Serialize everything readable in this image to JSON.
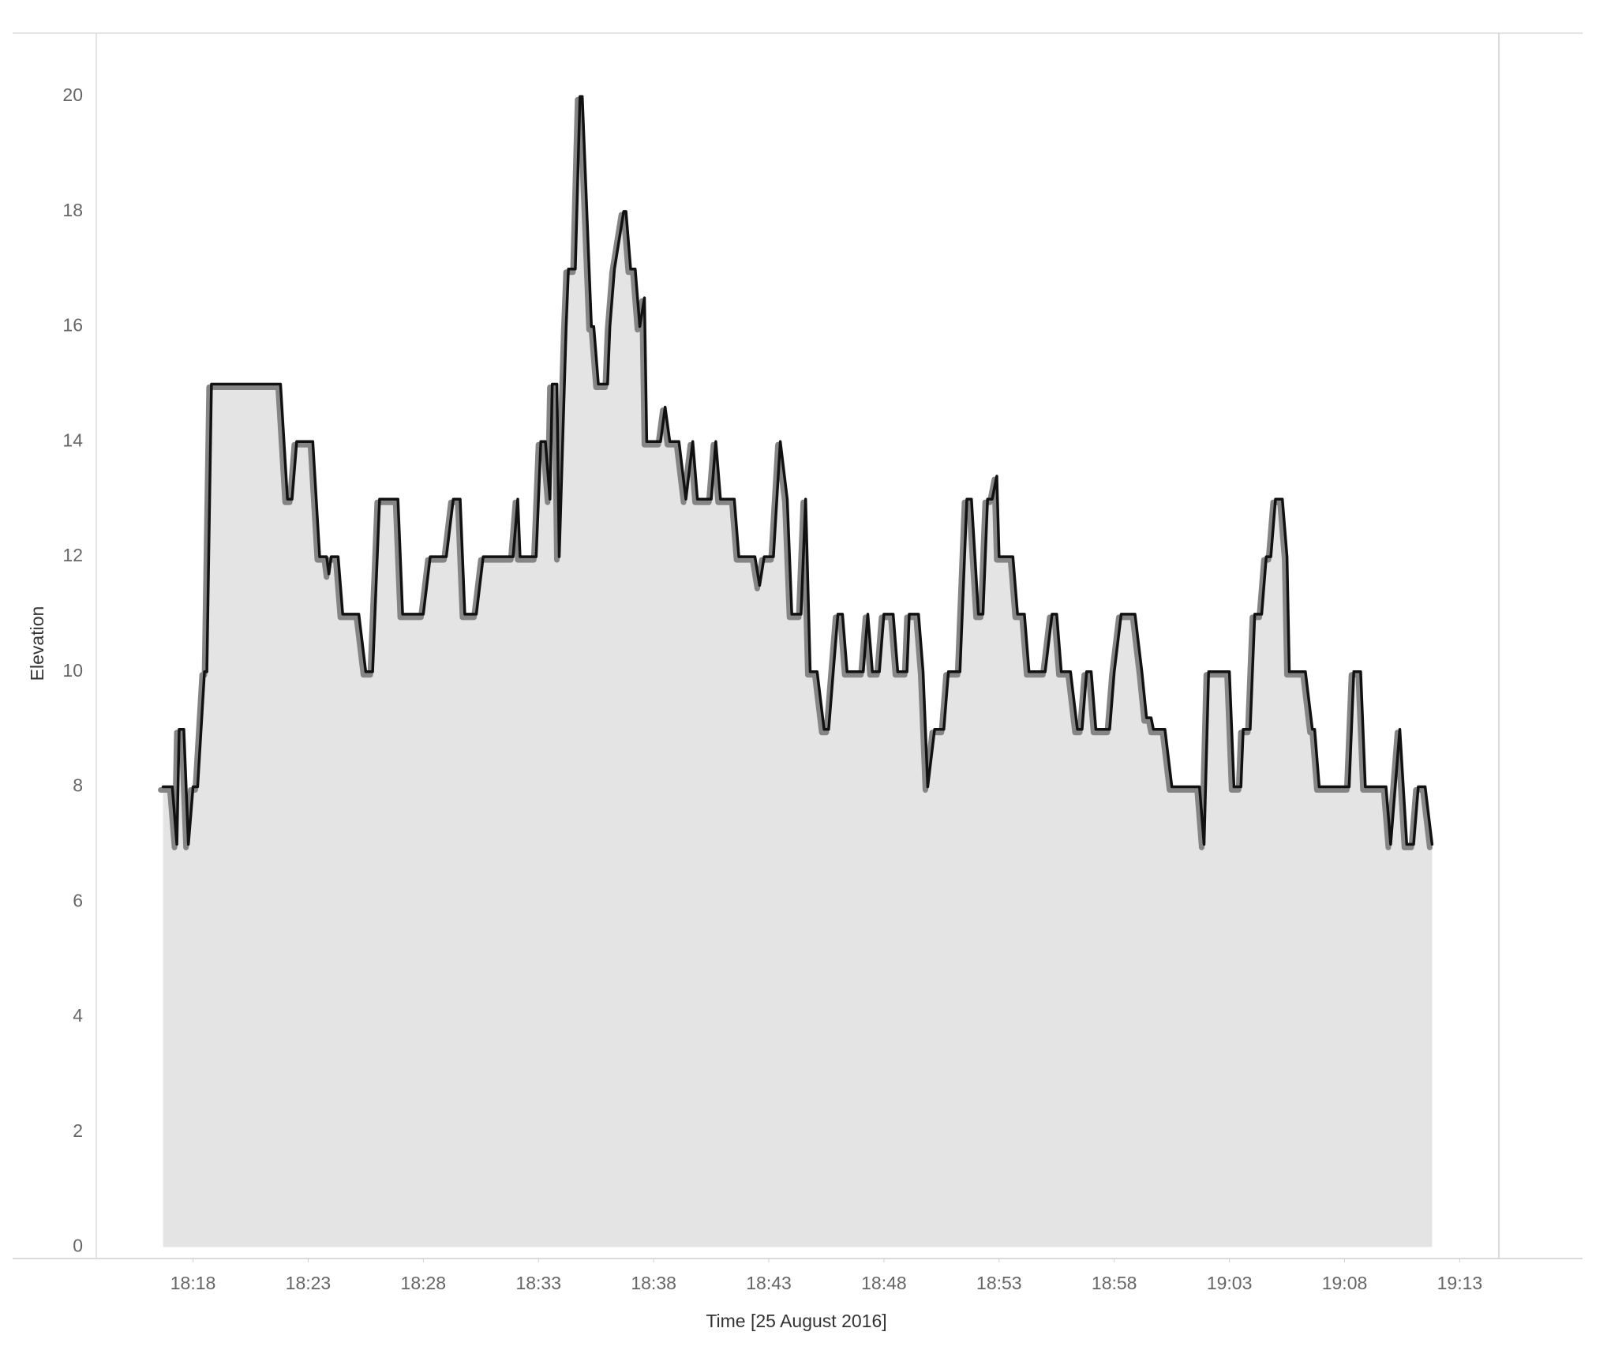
{
  "chart_data": {
    "type": "area",
    "x_label": "Time [25 August 2016]",
    "y_label": "Elevation",
    "color": "#111111",
    "shadow_color": "#858585",
    "area_color": "#e4e4e4",
    "x": [
      16.7,
      17.1,
      17.3,
      17.4,
      17.6,
      17.8,
      18.0,
      18.2,
      18.5,
      18.6,
      18.8,
      20.7,
      21.8,
      22.1,
      22.3,
      22.5,
      23.2,
      23.5,
      23.8,
      23.9,
      24.0,
      24.3,
      24.5,
      25.2,
      25.5,
      25.8,
      26.1,
      26.9,
      27.1,
      28.0,
      28.3,
      29.0,
      29.3,
      29.6,
      29.8,
      30.3,
      30.6,
      31.9,
      32.1,
      32.2,
      32.9,
      33.1,
      33.3,
      33.5,
      33.6,
      33.8,
      33.9,
      34.2,
      34.3,
      34.6,
      34.8,
      34.9,
      35.1,
      35.3,
      35.4,
      35.6,
      36.0,
      36.1,
      36.3,
      36.7,
      36.8,
      37.0,
      37.2,
      37.4,
      37.6,
      37.7,
      38.3,
      38.5,
      38.7,
      39.1,
      39.4,
      39.7,
      39.9,
      40.5,
      40.7,
      40.9,
      41.5,
      41.7,
      42.4,
      42.6,
      42.8,
      43.2,
      43.5,
      43.8,
      44.0,
      44.4,
      44.6,
      44.8,
      45.1,
      45.4,
      45.6,
      45.8,
      46.0,
      46.2,
      46.4,
      47.1,
      47.3,
      47.5,
      47.8,
      48.0,
      48.4,
      48.6,
      49.0,
      49.1,
      49.5,
      49.7,
      49.9,
      50.2,
      50.6,
      50.8,
      51.3,
      51.6,
      51.8,
      52.1,
      52.3,
      52.5,
      52.7,
      52.9,
      53.0,
      53.6,
      53.8,
      54.1,
      54.3,
      55.0,
      55.3,
      55.5,
      55.7,
      56.1,
      56.4,
      56.6,
      56.8,
      57.0,
      57.2,
      57.8,
      58.0,
      58.3,
      58.9,
      59.2,
      59.4,
      59.6,
      59.7,
      60.2,
      60.5,
      61.7,
      61.9,
      62.1,
      63.0,
      63.2,
      63.5,
      63.6,
      63.9,
      64.1,
      64.4,
      64.6,
      64.8,
      65.0,
      65.3,
      65.5,
      65.6,
      66.3,
      66.6,
      66.7,
      66.9,
      68.2,
      68.4,
      68.7,
      68.9,
      69.8,
      70.0,
      70.4,
      70.7,
      71.0,
      71.2,
      71.5,
      71.8
    ],
    "values": [
      8,
      8,
      7,
      9,
      9,
      7,
      8,
      8,
      10,
      10,
      15,
      15,
      15,
      13,
      13,
      14,
      14,
      12,
      12,
      11.7,
      12,
      12,
      11,
      11,
      10,
      10,
      13,
      13,
      11,
      11,
      12,
      12,
      13,
      13,
      11,
      11,
      12,
      12,
      13,
      12,
      12,
      14,
      14,
      13,
      15,
      15,
      12,
      16,
      17,
      17,
      20,
      20,
      18,
      16,
      16,
      15,
      15,
      16,
      17,
      18,
      18,
      17,
      17,
      16,
      16.5,
      14,
      14,
      14.6,
      14,
      14,
      13,
      14,
      13,
      13,
      14,
      13,
      13,
      12,
      12,
      11.5,
      12,
      12,
      14,
      13,
      11,
      11,
      13,
      10,
      10,
      9,
      9,
      10,
      11,
      11,
      10,
      10,
      11,
      10,
      10,
      11,
      11,
      10,
      10,
      11,
      11,
      10,
      8,
      9,
      9,
      10,
      10,
      13,
      13,
      11,
      11,
      13,
      13,
      13.4,
      12,
      12,
      11,
      11,
      10,
      10,
      11,
      11,
      10,
      10,
      9,
      9,
      10,
      10,
      9,
      9,
      10,
      11,
      11,
      10,
      9.2,
      9.2,
      9,
      9,
      8,
      8,
      7,
      10,
      10,
      8,
      8,
      9,
      9,
      11,
      11,
      12,
      12,
      13,
      13,
      12,
      10,
      10,
      9,
      9,
      8,
      8,
      10,
      10,
      8,
      8,
      7,
      9,
      7,
      7,
      8,
      8,
      7
    ],
    "xlim": [
      13.8,
      74.7
    ],
    "ylim": [
      -0.2,
      21.1
    ],
    "xticks": [
      {
        "value": 18,
        "label": "18:18"
      },
      {
        "value": 23,
        "label": "18:23"
      },
      {
        "value": 28,
        "label": "18:28"
      },
      {
        "value": 33,
        "label": "18:33"
      },
      {
        "value": 38,
        "label": "18:38"
      },
      {
        "value": 43,
        "label": "18:43"
      },
      {
        "value": 48,
        "label": "18:48"
      },
      {
        "value": 53,
        "label": "18:53"
      },
      {
        "value": 58,
        "label": "18:58"
      },
      {
        "value": 63,
        "label": "19:03"
      },
      {
        "value": 68,
        "label": "19:08"
      },
      {
        "value": 73,
        "label": "19:13"
      }
    ],
    "yticks": [
      0,
      2,
      4,
      6,
      8,
      10,
      12,
      14,
      16,
      18,
      20
    ],
    "grid": false
  }
}
